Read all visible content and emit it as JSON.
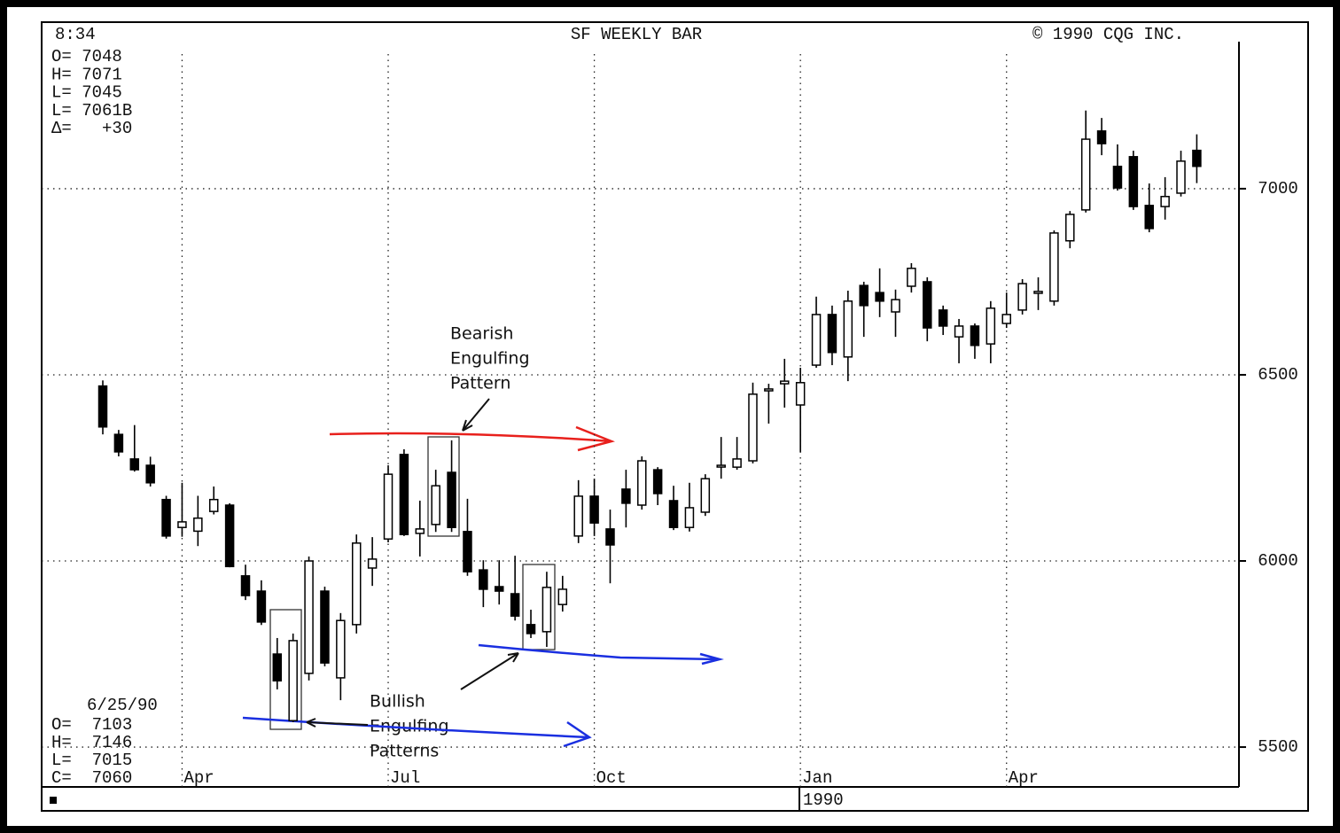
{
  "chart_data": {
    "type": "candlestick",
    "title": "SF WEEKLY BAR",
    "time": "8:34",
    "copyright": "© 1990 CQG INC.",
    "quote_lines": [
      "O= 7048",
      "H= 7071",
      "L= 7045",
      "L= 7061B",
      "Δ=   +30"
    ],
    "last_date": "6/25/90",
    "last_lines": [
      "O=  7103",
      "H=  7146",
      "L=  7015",
      "C=  7060"
    ],
    "year_label": "1990",
    "annotations": [
      {
        "lines": [
          "Bearish",
          "Engulfing",
          "Pattern"
        ]
      },
      {
        "lines": [
          "Bullish",
          "Engulfing",
          "Patterns"
        ]
      }
    ],
    "categories": [
      null,
      null,
      null,
      null,
      null,
      "Apr",
      null,
      null,
      null,
      null,
      null,
      null,
      null,
      null,
      null,
      null,
      null,
      null,
      "Jul",
      null,
      null,
      null,
      null,
      null,
      null,
      null,
      null,
      null,
      null,
      null,
      null,
      "Oct",
      null,
      null,
      null,
      null,
      null,
      null,
      null,
      null,
      null,
      null,
      null,
      null,
      "Jan",
      null,
      null,
      null,
      null,
      null,
      null,
      null,
      null,
      null,
      null,
      null,
      null,
      "Apr",
      null,
      null,
      null,
      null,
      null,
      null,
      null,
      null,
      null,
      null,
      null,
      null
    ],
    "open": [
      6470,
      6340,
      6274,
      6257,
      6165,
      6090,
      6080,
      6133,
      6150,
      5960,
      5919,
      5750,
      5571,
      5698,
      5919,
      5686,
      5829,
      5981,
      6059,
      6286,
      6074,
      6098,
      6238,
      6079,
      5976,
      5931,
      5912,
      5829,
      5810,
      5883,
      6067,
      6174,
      6086,
      6193,
      6150,
      6245,
      6162,
      6090,
      6131,
      6255,
      6252,
      6269,
      6457,
      6476,
      6419,
      6526,
      6662,
      6548,
      6740,
      6721,
      6669,
      6738,
      6750,
      6674,
      6602,
      6631,
      6583,
      6638,
      6674,
      6719,
      6698,
      6860,
      6943,
      7155,
      7060,
      7086,
      6955,
      6952,
      6988,
      7103
    ],
    "high": [
      6485,
      6352,
      6365,
      6280,
      6175,
      6210,
      6175,
      6200,
      6155,
      5990,
      5948,
      5793,
      5805,
      6012,
      5931,
      5860,
      6071,
      6064,
      6257,
      6300,
      6162,
      6245,
      6324,
      6167,
      6002,
      6002,
      6014,
      5869,
      5971,
      5960,
      6217,
      6221,
      6138,
      6245,
      6281,
      6252,
      6202,
      6210,
      6233,
      6333,
      6333,
      6479,
      6476,
      6543,
      6519,
      6710,
      6686,
      6726,
      6750,
      6786,
      6729,
      6800,
      6762,
      6686,
      6650,
      6638,
      6698,
      6721,
      6757,
      6762,
      6888,
      6940,
      7210,
      7190,
      7119,
      7102,
      7014,
      7031,
      7102,
      7146
    ],
    "low": [
      6340,
      6281,
      6240,
      6200,
      6060,
      6065,
      6040,
      6125,
      5983,
      5895,
      5828,
      5655,
      5567,
      5679,
      5717,
      5626,
      5805,
      5933,
      6050,
      6067,
      6012,
      6078,
      6078,
      5960,
      5876,
      5883,
      5840,
      5793,
      5769,
      5864,
      6048,
      6067,
      5940,
      6090,
      6138,
      6150,
      6083,
      6079,
      6121,
      6221,
      6245,
      6262,
      6369,
      6412,
      6293,
      6519,
      6526,
      6483,
      6602,
      6655,
      6602,
      6721,
      6590,
      6607,
      6531,
      6543,
      6531,
      6626,
      6662,
      6674,
      6686,
      6840,
      6936,
      7090,
      6995,
      6943,
      6883,
      6917,
      6979,
      7015
    ],
    "close": [
      6360,
      6293,
      6245,
      6210,
      6067,
      6105,
      6115,
      6165,
      5985,
      5907,
      5836,
      5678,
      5786,
      6000,
      5726,
      5840,
      6048,
      6005,
      6233,
      6071,
      6086,
      6202,
      6090,
      5971,
      5924,
      5919,
      5852,
      5805,
      5929,
      5924,
      6174,
      6102,
      6043,
      6155,
      6269,
      6181,
      6090,
      6143,
      6221,
      6257,
      6274,
      6448,
      6462,
      6483,
      6479,
      6662,
      6560,
      6698,
      6686,
      6698,
      6702,
      6786,
      6626,
      6631,
      6631,
      6579,
      6679,
      6662,
      6745,
      6724,
      6881,
      6931,
      7133,
      7121,
      7002,
      6952,
      6893,
      6979,
      7074,
      7060
    ],
    "ylim": [
      5393,
      7395
    ],
    "yticks": [
      5500,
      6000,
      6500,
      7000
    ],
    "grid": true,
    "up_color": "#ffffff",
    "down_color": "#000000"
  }
}
